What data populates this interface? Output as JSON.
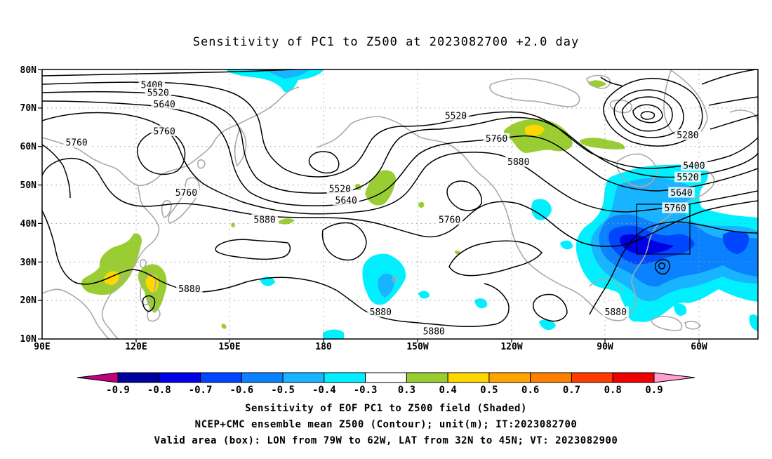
{
  "title": "Sensitivity of PC1 to Z500 at 2023082700 +2.0 day",
  "map": {
    "lat_labels": [
      "80N",
      "70N",
      "60N",
      "50N",
      "40N",
      "30N",
      "20N",
      "10N"
    ],
    "lon_labels": [
      "90E",
      "120E",
      "150E",
      "180",
      "150W",
      "120W",
      "90W",
      "60W"
    ],
    "contour_labels": [
      {
        "text": "5400",
        "lon": -62,
        "lat": 55
      },
      {
        "text": "5520",
        "lon": -64,
        "lat": 52
      },
      {
        "text": "5640",
        "lon": -66,
        "lat": 48
      },
      {
        "text": "5760",
        "lon": -68,
        "lat": 44
      },
      {
        "text": "5280",
        "lon": -64,
        "lat": 63
      },
      {
        "text": "5400",
        "lon": 125,
        "lat": 76
      },
      {
        "text": "5520",
        "lon": 127,
        "lat": 74
      },
      {
        "text": "5640",
        "lon": 129,
        "lat": 71
      },
      {
        "text": "5760",
        "lon": 129,
        "lat": 64
      },
      {
        "text": "5760",
        "lon": 101,
        "lat": 61
      },
      {
        "text": "5760",
        "lon": 136,
        "lat": 48
      },
      {
        "text": "5880",
        "lon": 161,
        "lat": 41
      },
      {
        "text": "5520",
        "lon": -138,
        "lat": 68
      },
      {
        "text": "5760",
        "lon": -125,
        "lat": 62
      },
      {
        "text": "5880",
        "lon": -118,
        "lat": 56
      },
      {
        "text": "5520",
        "lon": -175,
        "lat": 49
      },
      {
        "text": "5640",
        "lon": -173,
        "lat": 46
      },
      {
        "text": "5760",
        "lon": -140,
        "lat": 41
      },
      {
        "text": "5880",
        "lon": 137,
        "lat": 23
      },
      {
        "text": "5880",
        "lon": -162,
        "lat": 17
      },
      {
        "text": "5880",
        "lon": -145,
        "lat": 12
      },
      {
        "text": "5880",
        "lon": -87,
        "lat": 17
      }
    ]
  },
  "colorbar": {
    "labels": [
      "-0.9",
      "-0.8",
      "-0.7",
      "-0.6",
      "-0.5",
      "-0.4",
      "-0.3",
      "0.3",
      "0.4",
      "0.5",
      "0.6",
      "0.7",
      "0.8",
      "0.9"
    ],
    "colors": [
      "#0000a0",
      "#0000e6",
      "#0046ff",
      "#0a82ff",
      "#19b4ff",
      "#00f0ff",
      "#ffffff",
      "#9acd32",
      "#ffd700",
      "#ffa500",
      "#ff7f00",
      "#ff3c00",
      "#f00000"
    ],
    "low_color": "#c0007d",
    "high_color": "#ff9ecf"
  },
  "captions": [
    "Sensitivity of EOF PC1 to Z500 field (Shaded)",
    "NCEP+CMC ensemble mean Z500 (Contour); unit(m); IT:2023082700",
    "Valid area (box): LON from 79W to 62W, LAT from 32N to 45N; VT: 2023082900"
  ]
}
